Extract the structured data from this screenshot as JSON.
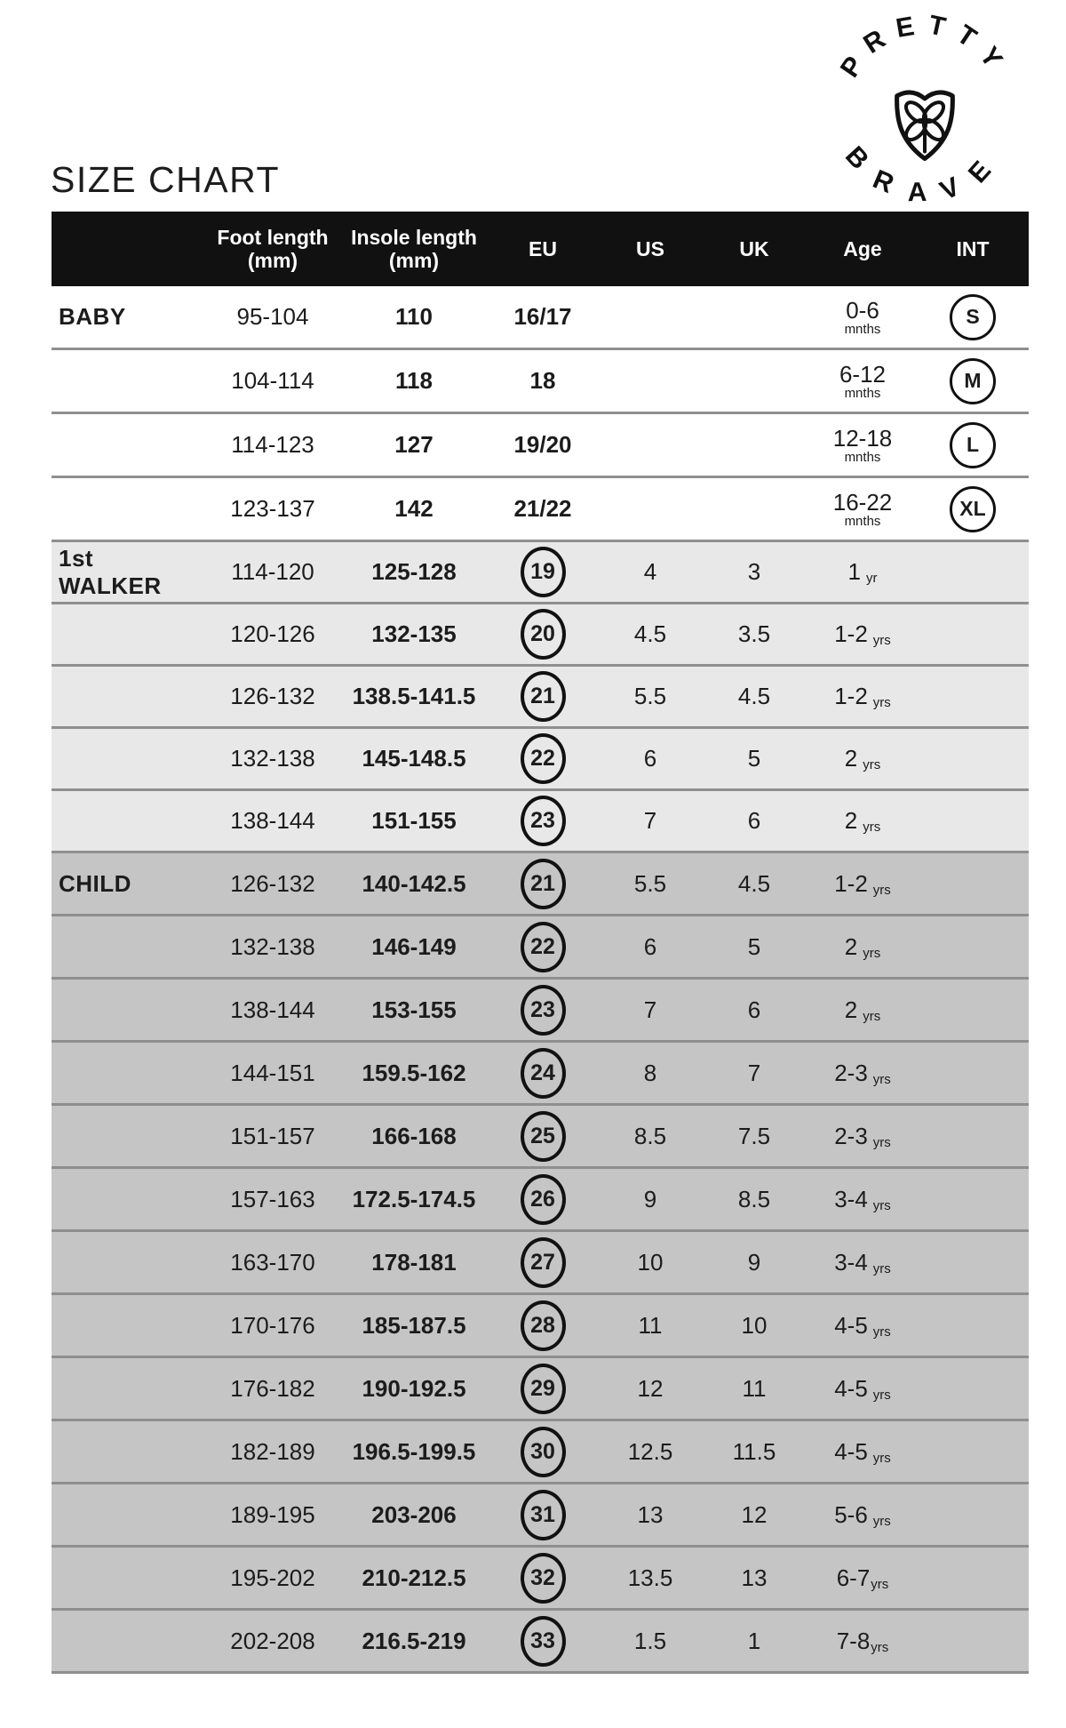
{
  "title": "SIZE CHART",
  "logo": {
    "arc_top": "PRETTY",
    "arc_bottom": "BRAVE"
  },
  "header": {
    "foot_line1": "Foot length",
    "foot_line2": "(mm)",
    "insole_line1": "Insole length",
    "insole_line2": "(mm)",
    "eu": "EU",
    "us": "US",
    "uk": "UK",
    "age": "Age",
    "int": "INT"
  },
  "colors": {
    "header_bg": "#111111",
    "header_text": "#ffffff",
    "text": "#1c1c1c",
    "separator": "#8f8f8f",
    "baby_bg": "#ffffff",
    "walker_bg": "#e8e8e8",
    "child_bg": "#c5c5c5"
  },
  "chart_data": {
    "type": "table",
    "title": "SIZE CHART",
    "columns": [
      "Category",
      "Foot length (mm)",
      "Insole length (mm)",
      "EU",
      "US",
      "UK",
      "Age",
      "INT"
    ],
    "sections": [
      {
        "label": "BABY",
        "bg_key": "baby",
        "rows": [
          {
            "foot": "95-104",
            "insole": "110",
            "eu": "16/17",
            "eu_circled": false,
            "us": "",
            "uk": "",
            "age": "0-6",
            "age_unit": "mnths",
            "age_stacked": true,
            "int_size": "S"
          },
          {
            "foot": "104-114",
            "insole": "118",
            "eu": "18",
            "eu_circled": false,
            "us": "",
            "uk": "",
            "age": "6-12",
            "age_unit": "mnths",
            "age_stacked": true,
            "int_size": "M"
          },
          {
            "foot": "114-123",
            "insole": "127",
            "eu": "19/20",
            "eu_circled": false,
            "us": "",
            "uk": "",
            "age": "12-18",
            "age_unit": "mnths",
            "age_stacked": true,
            "int_size": "L"
          },
          {
            "foot": "123-137",
            "insole": "142",
            "eu": "21/22",
            "eu_circled": false,
            "us": "",
            "uk": "",
            "age": "16-22",
            "age_unit": "mnths",
            "age_stacked": true,
            "int_size": "XL"
          }
        ]
      },
      {
        "label": "1st WALKER",
        "bg_key": "walker",
        "rows": [
          {
            "foot": "114-120",
            "insole": "125-128",
            "eu": "19",
            "eu_circled": true,
            "us": "4",
            "uk": "3",
            "age": "1",
            "age_unit": "yr",
            "age_gap": true,
            "int_size": ""
          },
          {
            "foot": "120-126",
            "insole": "132-135",
            "eu": "20",
            "eu_circled": true,
            "us": "4.5",
            "uk": "3.5",
            "age": "1-2",
            "age_unit": "yrs",
            "age_gap": true,
            "int_size": ""
          },
          {
            "foot": "126-132",
            "insole": "138.5-141.5",
            "eu": "21",
            "eu_circled": true,
            "us": "5.5",
            "uk": "4.5",
            "age": "1-2",
            "age_unit": "yrs",
            "age_gap": true,
            "int_size": ""
          },
          {
            "foot": "132-138",
            "insole": "145-148.5",
            "eu": "22",
            "eu_circled": true,
            "us": "6",
            "uk": "5",
            "age": "2",
            "age_unit": "yrs",
            "age_gap": true,
            "int_size": ""
          },
          {
            "foot": "138-144",
            "insole": "151-155",
            "eu": "23",
            "eu_circled": true,
            "us": "7",
            "uk": "6",
            "age": "2",
            "age_unit": "yrs",
            "age_gap": true,
            "int_size": ""
          }
        ]
      },
      {
        "label": "CHILD",
        "bg_key": "child",
        "rows": [
          {
            "foot": "126-132",
            "insole": "140-142.5",
            "eu": "21",
            "eu_circled": true,
            "us": "5.5",
            "uk": "4.5",
            "age": "1-2",
            "age_unit": "yrs",
            "age_gap": true,
            "int_size": ""
          },
          {
            "foot": "132-138",
            "insole": "146-149",
            "eu": "22",
            "eu_circled": true,
            "us": "6",
            "uk": "5",
            "age": "2",
            "age_unit": "yrs",
            "age_gap": true,
            "int_size": ""
          },
          {
            "foot": "138-144",
            "insole": "153-155",
            "eu": "23",
            "eu_circled": true,
            "us": "7",
            "uk": "6",
            "age": "2",
            "age_unit": "yrs",
            "age_gap": true,
            "int_size": ""
          },
          {
            "foot": "144-151",
            "insole": "159.5-162",
            "eu": "24",
            "eu_circled": true,
            "us": "8",
            "uk": "7",
            "age": "2-3",
            "age_unit": "yrs",
            "age_gap": true,
            "int_size": ""
          },
          {
            "foot": "151-157",
            "insole": "166-168",
            "eu": "25",
            "eu_circled": true,
            "us": "8.5",
            "uk": "7.5",
            "age": "2-3",
            "age_unit": "yrs",
            "age_gap": true,
            "int_size": ""
          },
          {
            "foot": "157-163",
            "insole": "172.5-174.5",
            "eu": "26",
            "eu_circled": true,
            "us": "9",
            "uk": "8.5",
            "age": "3-4",
            "age_unit": "yrs",
            "age_gap": true,
            "int_size": ""
          },
          {
            "foot": "163-170",
            "insole": "178-181",
            "eu": "27",
            "eu_circled": true,
            "us": "10",
            "uk": "9",
            "age": "3-4",
            "age_unit": "yrs",
            "age_gap": true,
            "int_size": ""
          },
          {
            "foot": "170-176",
            "insole": "185-187.5",
            "eu": "28",
            "eu_circled": true,
            "us": "11",
            "uk": "10",
            "age": "4-5",
            "age_unit": "yrs",
            "age_gap": true,
            "int_size": ""
          },
          {
            "foot": "176-182",
            "insole": "190-192.5",
            "eu": "29",
            "eu_circled": true,
            "us": "12",
            "uk": "11",
            "age": "4-5",
            "age_unit": "yrs",
            "age_gap": true,
            "int_size": ""
          },
          {
            "foot": "182-189",
            "insole": "196.5-199.5",
            "eu": "30",
            "eu_circled": true,
            "us": "12.5",
            "uk": "11.5",
            "age": "4-5",
            "age_unit": "yrs",
            "age_gap": true,
            "int_size": ""
          },
          {
            "foot": "189-195",
            "insole": "203-206",
            "eu": "31",
            "eu_circled": true,
            "us": "13",
            "uk": "12",
            "age": "5-6",
            "age_unit": "yrs",
            "age_gap": true,
            "int_size": ""
          },
          {
            "foot": "195-202",
            "insole": "210-212.5",
            "eu": "32",
            "eu_circled": true,
            "us": "13.5",
            "uk": "13",
            "age": "6-7",
            "age_unit": "yrs",
            "age_gap": false,
            "int_size": ""
          },
          {
            "foot": "202-208",
            "insole": "216.5-219",
            "eu": "33",
            "eu_circled": true,
            "us": "1.5",
            "uk": "1",
            "age": "7-8",
            "age_unit": "yrs",
            "age_gap": false,
            "int_size": ""
          }
        ]
      }
    ]
  }
}
